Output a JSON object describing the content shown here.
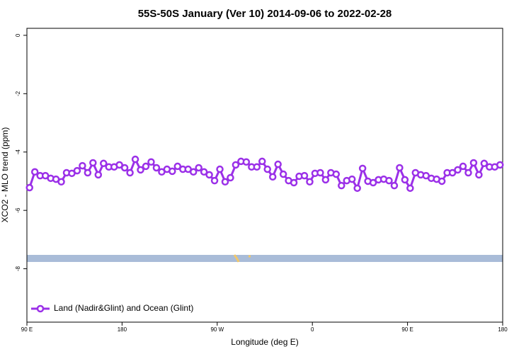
{
  "chart_data": {
    "type": "line",
    "title": "55S-50S January (Ver 10)   2014-09-06 to 2022-02-28",
    "x_label": "Longitude (deg E)",
    "y_label": "XCO2 - MLO trend (ppm)",
    "xlim": [
      90,
      540
    ],
    "ylim": [
      -9.83,
      0.24
    ],
    "xticks": [
      {
        "value": 90,
        "label": "90 E"
      },
      180,
      {
        "value": 270,
        "label": "90 W"
      },
      {
        "value": 360,
        "label": "0"
      },
      {
        "value": 450,
        "label": "90 E"
      },
      {
        "value": 540,
        "label": "180"
      }
    ],
    "yticks": [
      0,
      -2,
      -4,
      -6,
      -8
    ],
    "legend": "bottom-left",
    "x": [
      92.5,
      97.5,
      102.5,
      107.5,
      112.5,
      117.5,
      122.5,
      127.5,
      132.5,
      137.5,
      142.5,
      147.5,
      152.5,
      157.5,
      162.5,
      167.5,
      172.5,
      177.5,
      182.5,
      187.5,
      192.5,
      197.5,
      202.5,
      207.5,
      212.5,
      217.5,
      222.5,
      227.5,
      232.5,
      237.5,
      242.5,
      247.5,
      252.5,
      257.5,
      262.5,
      267.5,
      272.5,
      277.5,
      282.5,
      287.5,
      292.5,
      297.5,
      302.5,
      307.5,
      312.5,
      317.5,
      322.5,
      327.5,
      332.5,
      337.5,
      342.5,
      347.5,
      352.5,
      357.5,
      362.5,
      367.5,
      372.5,
      377.5,
      382.5,
      387.5,
      392.5,
      397.5,
      402.5,
      407.5,
      412.5,
      417.5,
      422.5,
      427.5,
      432.5,
      437.5,
      442.5,
      447.5,
      452.5,
      457.5,
      462.5,
      467.5,
      472.5,
      477.5,
      482.5,
      487.5,
      492.5,
      497.5,
      502.5,
      507.5,
      512.5,
      517.5,
      522.5,
      527.5,
      532.5,
      537.5
    ],
    "series": [
      {
        "name": "Land (Nadir&Glint) and Ocean (Glint)",
        "color": "#9b30e8",
        "values": [
          -5.22,
          -4.68,
          -4.81,
          -4.81,
          -4.9,
          -4.93,
          -5.02,
          -4.71,
          -4.73,
          -4.64,
          -4.47,
          -4.71,
          -4.37,
          -4.78,
          -4.39,
          -4.51,
          -4.51,
          -4.44,
          -4.54,
          -4.71,
          -4.25,
          -4.61,
          -4.49,
          -4.34,
          -4.54,
          -4.68,
          -4.59,
          -4.66,
          -4.49,
          -4.59,
          -4.59,
          -4.68,
          -4.54,
          -4.68,
          -4.78,
          -4.98,
          -4.59,
          -5.02,
          -4.88,
          -4.44,
          -4.32,
          -4.34,
          -4.51,
          -4.51,
          -4.32,
          -4.59,
          -4.85,
          -4.42,
          -4.76,
          -4.98,
          -5.05,
          -4.83,
          -4.81,
          -5.02,
          -4.73,
          -4.71,
          -4.95,
          -4.71,
          -4.76,
          -5.15,
          -4.98,
          -4.93,
          -5.24,
          -4.56,
          -5.0,
          -5.05,
          -4.95,
          -4.93,
          -4.98,
          -5.15,
          -4.54,
          -4.95,
          -5.24,
          -4.71,
          -4.78,
          -4.81,
          -4.9,
          -4.93,
          -5.0,
          -4.71,
          -4.71,
          -4.61,
          -4.49,
          -4.71,
          -4.37,
          -4.78,
          -4.39,
          -4.51,
          -4.51,
          -4.44
        ]
      }
    ]
  }
}
